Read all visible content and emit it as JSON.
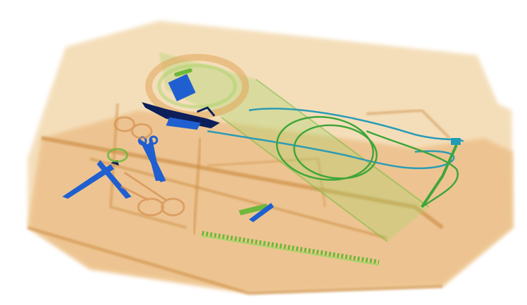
{
  "image": {
    "kind": "x-ray baggage scan",
    "background_color": "#ffffff",
    "colors": {
      "organic_orange": "#e8b070",
      "organic_light": "#f3d9ae",
      "organic_dark": "#c9883e",
      "mixed_green": "#6fb83a",
      "mixed_green_light": "#a9d46a",
      "metal_blue": "#1f5fd0",
      "metal_dark": "#0c1f5a",
      "cable_teal": "#2a9bb5"
    },
    "objects": [
      {
        "name": "tray-box",
        "material": "organic"
      },
      {
        "name": "cable-coil",
        "material": "mixed"
      },
      {
        "name": "long-strap",
        "material": "mixed"
      },
      {
        "name": "scissors-blue",
        "material": "metal"
      },
      {
        "name": "scissors-orange",
        "material": "organic"
      },
      {
        "name": "tweezers",
        "material": "metal"
      },
      {
        "name": "knife-dark",
        "material": "metal"
      },
      {
        "name": "green-cable-loop",
        "material": "mixed"
      },
      {
        "name": "small-clip",
        "material": "metal"
      },
      {
        "name": "comb-strip",
        "material": "mixed"
      }
    ]
  }
}
